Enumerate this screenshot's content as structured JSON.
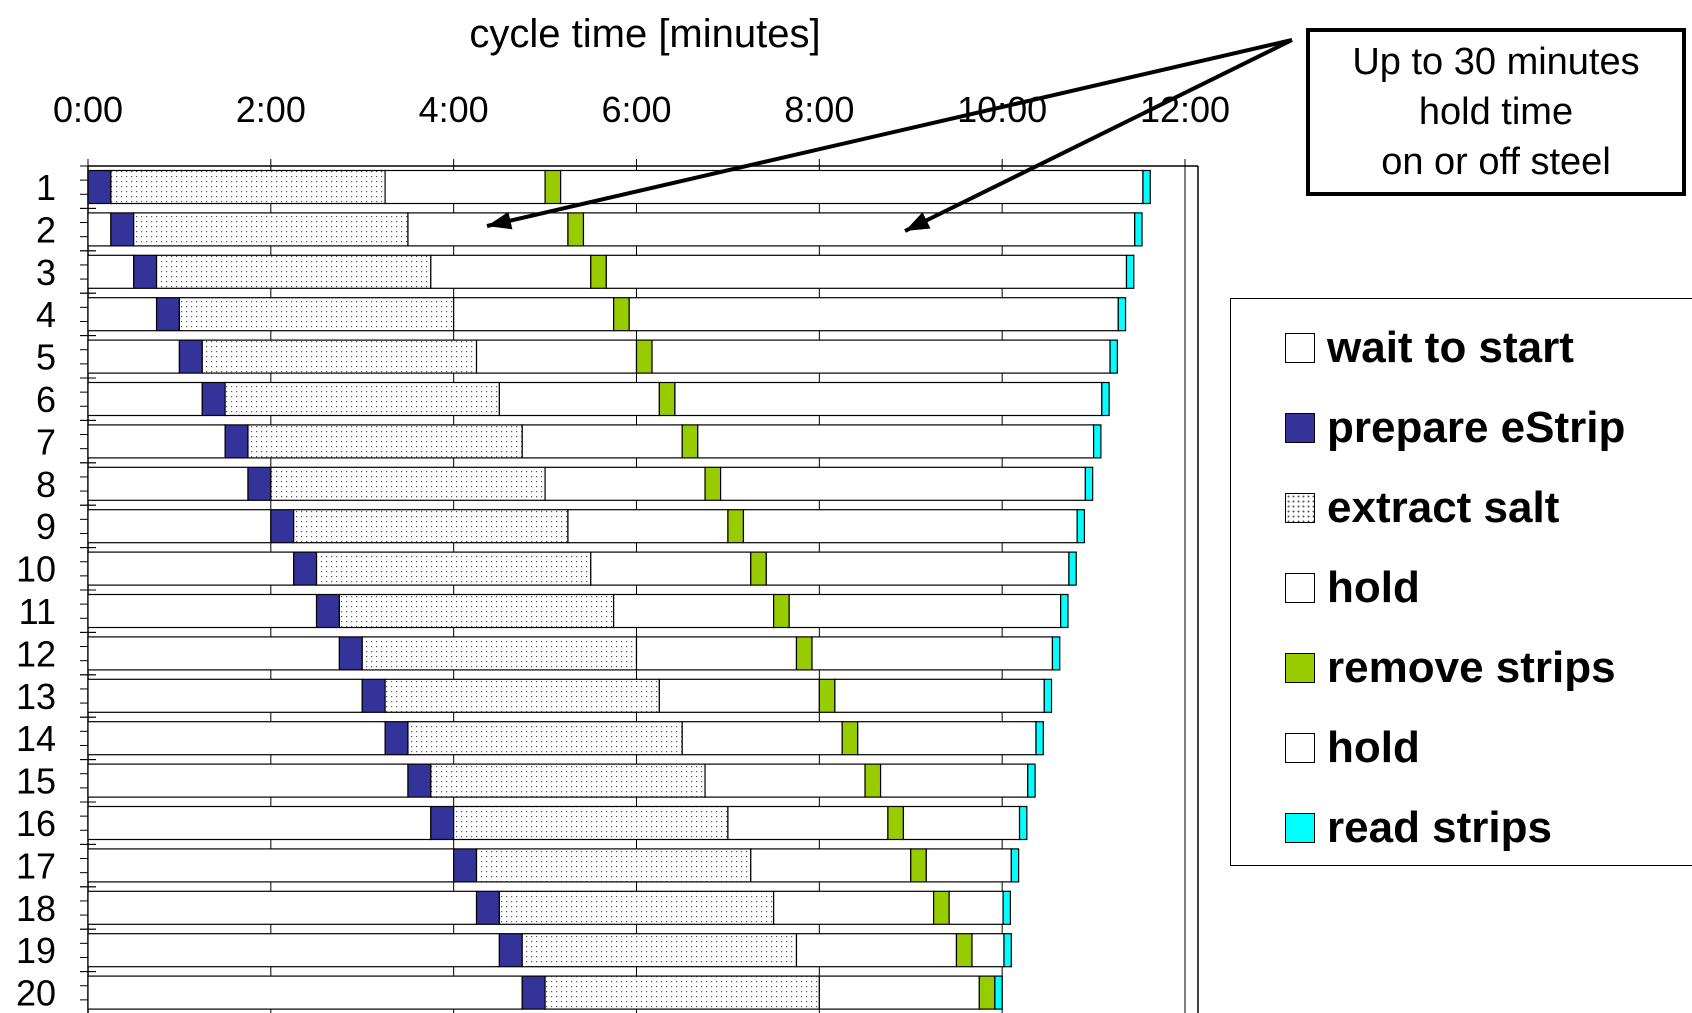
{
  "chart_data": {
    "type": "bar",
    "orientation": "horizontal",
    "stacked": true,
    "title": "cycle time [minutes]",
    "xlabel": "",
    "ylabel": "",
    "x_tick_labels": [
      "0:00",
      "2:00",
      "4:00",
      "6:00",
      "8:00",
      "10:00",
      "12:00"
    ],
    "x_ticks_minutes": [
      0,
      2,
      4,
      6,
      8,
      10,
      12
    ],
    "xlim_minutes": [
      0,
      12
    ],
    "categories": [
      "1",
      "2",
      "3",
      "4",
      "5",
      "6",
      "7",
      "8",
      "9",
      "10",
      "11",
      "12",
      "13",
      "14",
      "15",
      "16",
      "17",
      "18",
      "19",
      "20"
    ],
    "series": [
      {
        "name": "wait to start",
        "fill": "#ffffff",
        "values": [
          0,
          0.25,
          0.5,
          0.75,
          1.0,
          1.25,
          1.5,
          1.75,
          2.0,
          2.25,
          2.5,
          2.75,
          3.0,
          3.25,
          3.5,
          3.75,
          4.0,
          4.25,
          4.5,
          4.75
        ]
      },
      {
        "name": "prepare eStrip",
        "fill": "#333399",
        "values": [
          0.25,
          0.25,
          0.25,
          0.25,
          0.25,
          0.25,
          0.25,
          0.25,
          0.25,
          0.25,
          0.25,
          0.25,
          0.25,
          0.25,
          0.25,
          0.25,
          0.25,
          0.25,
          0.25,
          0.25
        ]
      },
      {
        "name": "extract salt",
        "fill": "dotted",
        "values": [
          3.0,
          3.0,
          3.0,
          3.0,
          3.0,
          3.0,
          3.0,
          3.0,
          3.0,
          3.0,
          3.0,
          3.0,
          3.0,
          3.0,
          3.0,
          3.0,
          3.0,
          3.0,
          3.0,
          3.0
        ]
      },
      {
        "name": "hold",
        "fill": "#ffffff",
        "values": [
          1.75,
          1.75,
          1.75,
          1.75,
          1.75,
          1.75,
          1.75,
          1.75,
          1.75,
          1.75,
          1.75,
          1.75,
          1.75,
          1.75,
          1.75,
          1.75,
          1.75,
          1.75,
          1.75,
          1.75
        ]
      },
      {
        "name": "remove strips",
        "fill": "#99cc00",
        "values": [
          0.17,
          0.17,
          0.17,
          0.17,
          0.17,
          0.17,
          0.17,
          0.17,
          0.17,
          0.17,
          0.17,
          0.17,
          0.17,
          0.17,
          0.17,
          0.17,
          0.17,
          0.17,
          0.17,
          0.17
        ]
      },
      {
        "name": "hold",
        "fill": "#ffffff",
        "values": [
          6.37,
          6.03,
          5.69,
          5.35,
          5.01,
          4.67,
          4.33,
          3.99,
          3.65,
          3.31,
          2.97,
          2.63,
          2.29,
          1.95,
          1.61,
          1.27,
          0.93,
          0.59,
          0.35,
          0.0
        ]
      },
      {
        "name": "read strips",
        "fill": "#00ffff",
        "values": [
          0.08,
          0.08,
          0.08,
          0.08,
          0.08,
          0.08,
          0.08,
          0.08,
          0.08,
          0.08,
          0.08,
          0.08,
          0.08,
          0.08,
          0.08,
          0.08,
          0.08,
          0.08,
          0.08,
          0.08
        ]
      }
    ],
    "annotation": "Up to 30 minutes\nhold time\non or off steel",
    "legend_position": "right",
    "grid": false
  },
  "legend": {
    "items": [
      {
        "label": "wait to start",
        "color": "#ffffff"
      },
      {
        "label": "prepare eStrip",
        "color": "#333399"
      },
      {
        "label": "extract salt",
        "color": "dotted"
      },
      {
        "label": "hold",
        "color": "#ffffff"
      },
      {
        "label": "remove strips",
        "color": "#99cc00"
      },
      {
        "label": "hold",
        "color": "#ffffff"
      },
      {
        "label": "read strips",
        "color": "#00ffff"
      }
    ]
  }
}
